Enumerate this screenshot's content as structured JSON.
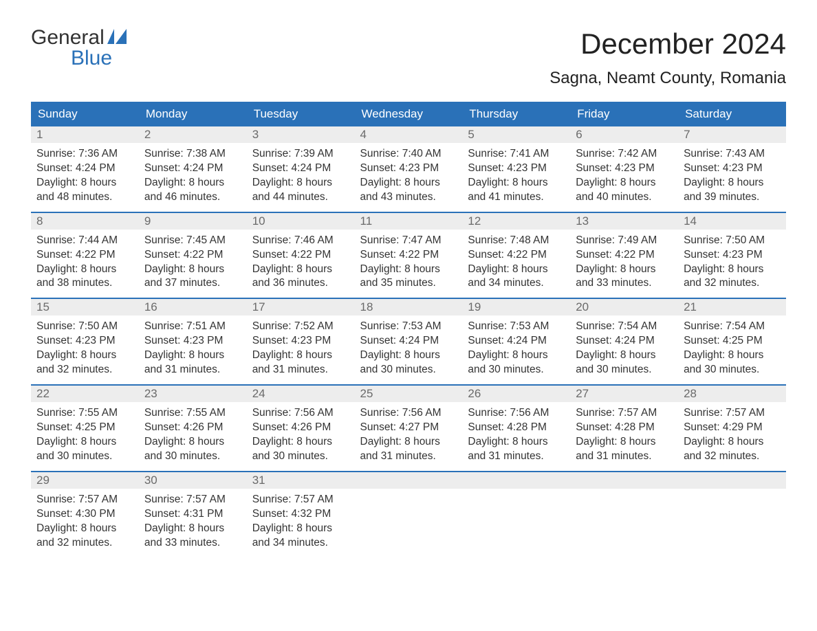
{
  "logo": {
    "line1": "General",
    "line2": "Blue"
  },
  "title": "December 2024",
  "location": "Sagna, Neamt County, Romania",
  "colors": {
    "header_bg": "#2a71b8",
    "header_text": "#ffffff",
    "daynum_bg": "#ededed",
    "daynum_text": "#6a6a6a",
    "body_text": "#333333",
    "week_border": "#2a71b8",
    "page_bg": "#ffffff",
    "logo_gray": "#323232",
    "logo_blue": "#2a71b8"
  },
  "layout": {
    "columns": 7,
    "rows": 5,
    "font_family": "Arial",
    "title_fontsize": 42,
    "location_fontsize": 24,
    "header_fontsize": 17,
    "daynum_fontsize": 17,
    "body_fontsize": 15.5
  },
  "weekdays": [
    "Sunday",
    "Monday",
    "Tuesday",
    "Wednesday",
    "Thursday",
    "Friday",
    "Saturday"
  ],
  "days": [
    {
      "n": "1",
      "sunrise": "7:36 AM",
      "sunset": "4:24 PM",
      "dl1": "Daylight: 8 hours",
      "dl2": "and 48 minutes."
    },
    {
      "n": "2",
      "sunrise": "7:38 AM",
      "sunset": "4:24 PM",
      "dl1": "Daylight: 8 hours",
      "dl2": "and 46 minutes."
    },
    {
      "n": "3",
      "sunrise": "7:39 AM",
      "sunset": "4:24 PM",
      "dl1": "Daylight: 8 hours",
      "dl2": "and 44 minutes."
    },
    {
      "n": "4",
      "sunrise": "7:40 AM",
      "sunset": "4:23 PM",
      "dl1": "Daylight: 8 hours",
      "dl2": "and 43 minutes."
    },
    {
      "n": "5",
      "sunrise": "7:41 AM",
      "sunset": "4:23 PM",
      "dl1": "Daylight: 8 hours",
      "dl2": "and 41 minutes."
    },
    {
      "n": "6",
      "sunrise": "7:42 AM",
      "sunset": "4:23 PM",
      "dl1": "Daylight: 8 hours",
      "dl2": "and 40 minutes."
    },
    {
      "n": "7",
      "sunrise": "7:43 AM",
      "sunset": "4:23 PM",
      "dl1": "Daylight: 8 hours",
      "dl2": "and 39 minutes."
    },
    {
      "n": "8",
      "sunrise": "7:44 AM",
      "sunset": "4:22 PM",
      "dl1": "Daylight: 8 hours",
      "dl2": "and 38 minutes."
    },
    {
      "n": "9",
      "sunrise": "7:45 AM",
      "sunset": "4:22 PM",
      "dl1": "Daylight: 8 hours",
      "dl2": "and 37 minutes."
    },
    {
      "n": "10",
      "sunrise": "7:46 AM",
      "sunset": "4:22 PM",
      "dl1": "Daylight: 8 hours",
      "dl2": "and 36 minutes."
    },
    {
      "n": "11",
      "sunrise": "7:47 AM",
      "sunset": "4:22 PM",
      "dl1": "Daylight: 8 hours",
      "dl2": "and 35 minutes."
    },
    {
      "n": "12",
      "sunrise": "7:48 AM",
      "sunset": "4:22 PM",
      "dl1": "Daylight: 8 hours",
      "dl2": "and 34 minutes."
    },
    {
      "n": "13",
      "sunrise": "7:49 AM",
      "sunset": "4:22 PM",
      "dl1": "Daylight: 8 hours",
      "dl2": "and 33 minutes."
    },
    {
      "n": "14",
      "sunrise": "7:50 AM",
      "sunset": "4:23 PM",
      "dl1": "Daylight: 8 hours",
      "dl2": "and 32 minutes."
    },
    {
      "n": "15",
      "sunrise": "7:50 AM",
      "sunset": "4:23 PM",
      "dl1": "Daylight: 8 hours",
      "dl2": "and 32 minutes."
    },
    {
      "n": "16",
      "sunrise": "7:51 AM",
      "sunset": "4:23 PM",
      "dl1": "Daylight: 8 hours",
      "dl2": "and 31 minutes."
    },
    {
      "n": "17",
      "sunrise": "7:52 AM",
      "sunset": "4:23 PM",
      "dl1": "Daylight: 8 hours",
      "dl2": "and 31 minutes."
    },
    {
      "n": "18",
      "sunrise": "7:53 AM",
      "sunset": "4:24 PM",
      "dl1": "Daylight: 8 hours",
      "dl2": "and 30 minutes."
    },
    {
      "n": "19",
      "sunrise": "7:53 AM",
      "sunset": "4:24 PM",
      "dl1": "Daylight: 8 hours",
      "dl2": "and 30 minutes."
    },
    {
      "n": "20",
      "sunrise": "7:54 AM",
      "sunset": "4:24 PM",
      "dl1": "Daylight: 8 hours",
      "dl2": "and 30 minutes."
    },
    {
      "n": "21",
      "sunrise": "7:54 AM",
      "sunset": "4:25 PM",
      "dl1": "Daylight: 8 hours",
      "dl2": "and 30 minutes."
    },
    {
      "n": "22",
      "sunrise": "7:55 AM",
      "sunset": "4:25 PM",
      "dl1": "Daylight: 8 hours",
      "dl2": "and 30 minutes."
    },
    {
      "n": "23",
      "sunrise": "7:55 AM",
      "sunset": "4:26 PM",
      "dl1": "Daylight: 8 hours",
      "dl2": "and 30 minutes."
    },
    {
      "n": "24",
      "sunrise": "7:56 AM",
      "sunset": "4:26 PM",
      "dl1": "Daylight: 8 hours",
      "dl2": "and 30 minutes."
    },
    {
      "n": "25",
      "sunrise": "7:56 AM",
      "sunset": "4:27 PM",
      "dl1": "Daylight: 8 hours",
      "dl2": "and 31 minutes."
    },
    {
      "n": "26",
      "sunrise": "7:56 AM",
      "sunset": "4:28 PM",
      "dl1": "Daylight: 8 hours",
      "dl2": "and 31 minutes."
    },
    {
      "n": "27",
      "sunrise": "7:57 AM",
      "sunset": "4:28 PM",
      "dl1": "Daylight: 8 hours",
      "dl2": "and 31 minutes."
    },
    {
      "n": "28",
      "sunrise": "7:57 AM",
      "sunset": "4:29 PM",
      "dl1": "Daylight: 8 hours",
      "dl2": "and 32 minutes."
    },
    {
      "n": "29",
      "sunrise": "7:57 AM",
      "sunset": "4:30 PM",
      "dl1": "Daylight: 8 hours",
      "dl2": "and 32 minutes."
    },
    {
      "n": "30",
      "sunrise": "7:57 AM",
      "sunset": "4:31 PM",
      "dl1": "Daylight: 8 hours",
      "dl2": "and 33 minutes."
    },
    {
      "n": "31",
      "sunrise": "7:57 AM",
      "sunset": "4:32 PM",
      "dl1": "Daylight: 8 hours",
      "dl2": "and 34 minutes."
    }
  ],
  "labels": {
    "sunrise": "Sunrise: ",
    "sunset": "Sunset: "
  }
}
